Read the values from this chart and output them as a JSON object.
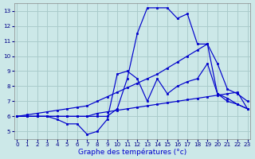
{
  "background_color": "#cce8e8",
  "grid_color": "#aacccc",
  "line_color": "#0000cc",
  "xlabel": "Graphe des températures (°c)",
  "xlim_min": -0.3,
  "xlim_max": 23.3,
  "ylim_min": 4.5,
  "ylim_max": 13.5,
  "xticks": [
    0,
    1,
    2,
    3,
    4,
    5,
    6,
    7,
    8,
    9,
    10,
    11,
    12,
    13,
    14,
    15,
    16,
    17,
    18,
    19,
    20,
    21,
    22,
    23
  ],
  "yticks": [
    5,
    6,
    7,
    8,
    9,
    10,
    11,
    12,
    13
  ],
  "hours": [
    0,
    1,
    2,
    3,
    4,
    5,
    6,
    7,
    8,
    9,
    10,
    11,
    12,
    13,
    14,
    15,
    16,
    17,
    18,
    19,
    20,
    21,
    22,
    23
  ],
  "line_flat": [
    6.0,
    6.0,
    6.0,
    6.0,
    6.0,
    6.0,
    6.0,
    6.0,
    6.2,
    6.3,
    6.4,
    6.5,
    6.6,
    6.7,
    6.8,
    6.9,
    7.0,
    7.1,
    7.2,
    7.3,
    7.4,
    7.5,
    7.6,
    6.5
  ],
  "line_diag": [
    6.0,
    6.1,
    6.2,
    6.3,
    6.4,
    6.5,
    6.6,
    6.7,
    7.0,
    7.3,
    7.6,
    7.9,
    8.2,
    8.5,
    8.8,
    9.2,
    9.6,
    10.0,
    10.4,
    10.8,
    9.5,
    7.8,
    7.5,
    7.0
  ],
  "line_wave": [
    6.0,
    6.0,
    6.0,
    6.0,
    5.8,
    5.5,
    5.5,
    4.8,
    5.0,
    5.8,
    8.8,
    9.0,
    8.5,
    7.0,
    8.5,
    7.5,
    8.0,
    8.3,
    8.5,
    9.5,
    7.5,
    7.2,
    6.8,
    6.5
  ],
  "line_peak": [
    6.0,
    6.0,
    6.0,
    6.0,
    6.0,
    6.0,
    6.0,
    6.0,
    6.0,
    6.0,
    6.5,
    8.5,
    11.5,
    13.2,
    13.2,
    13.2,
    12.5,
    12.8,
    10.8,
    10.8,
    7.5,
    7.0,
    6.8,
    6.5
  ]
}
